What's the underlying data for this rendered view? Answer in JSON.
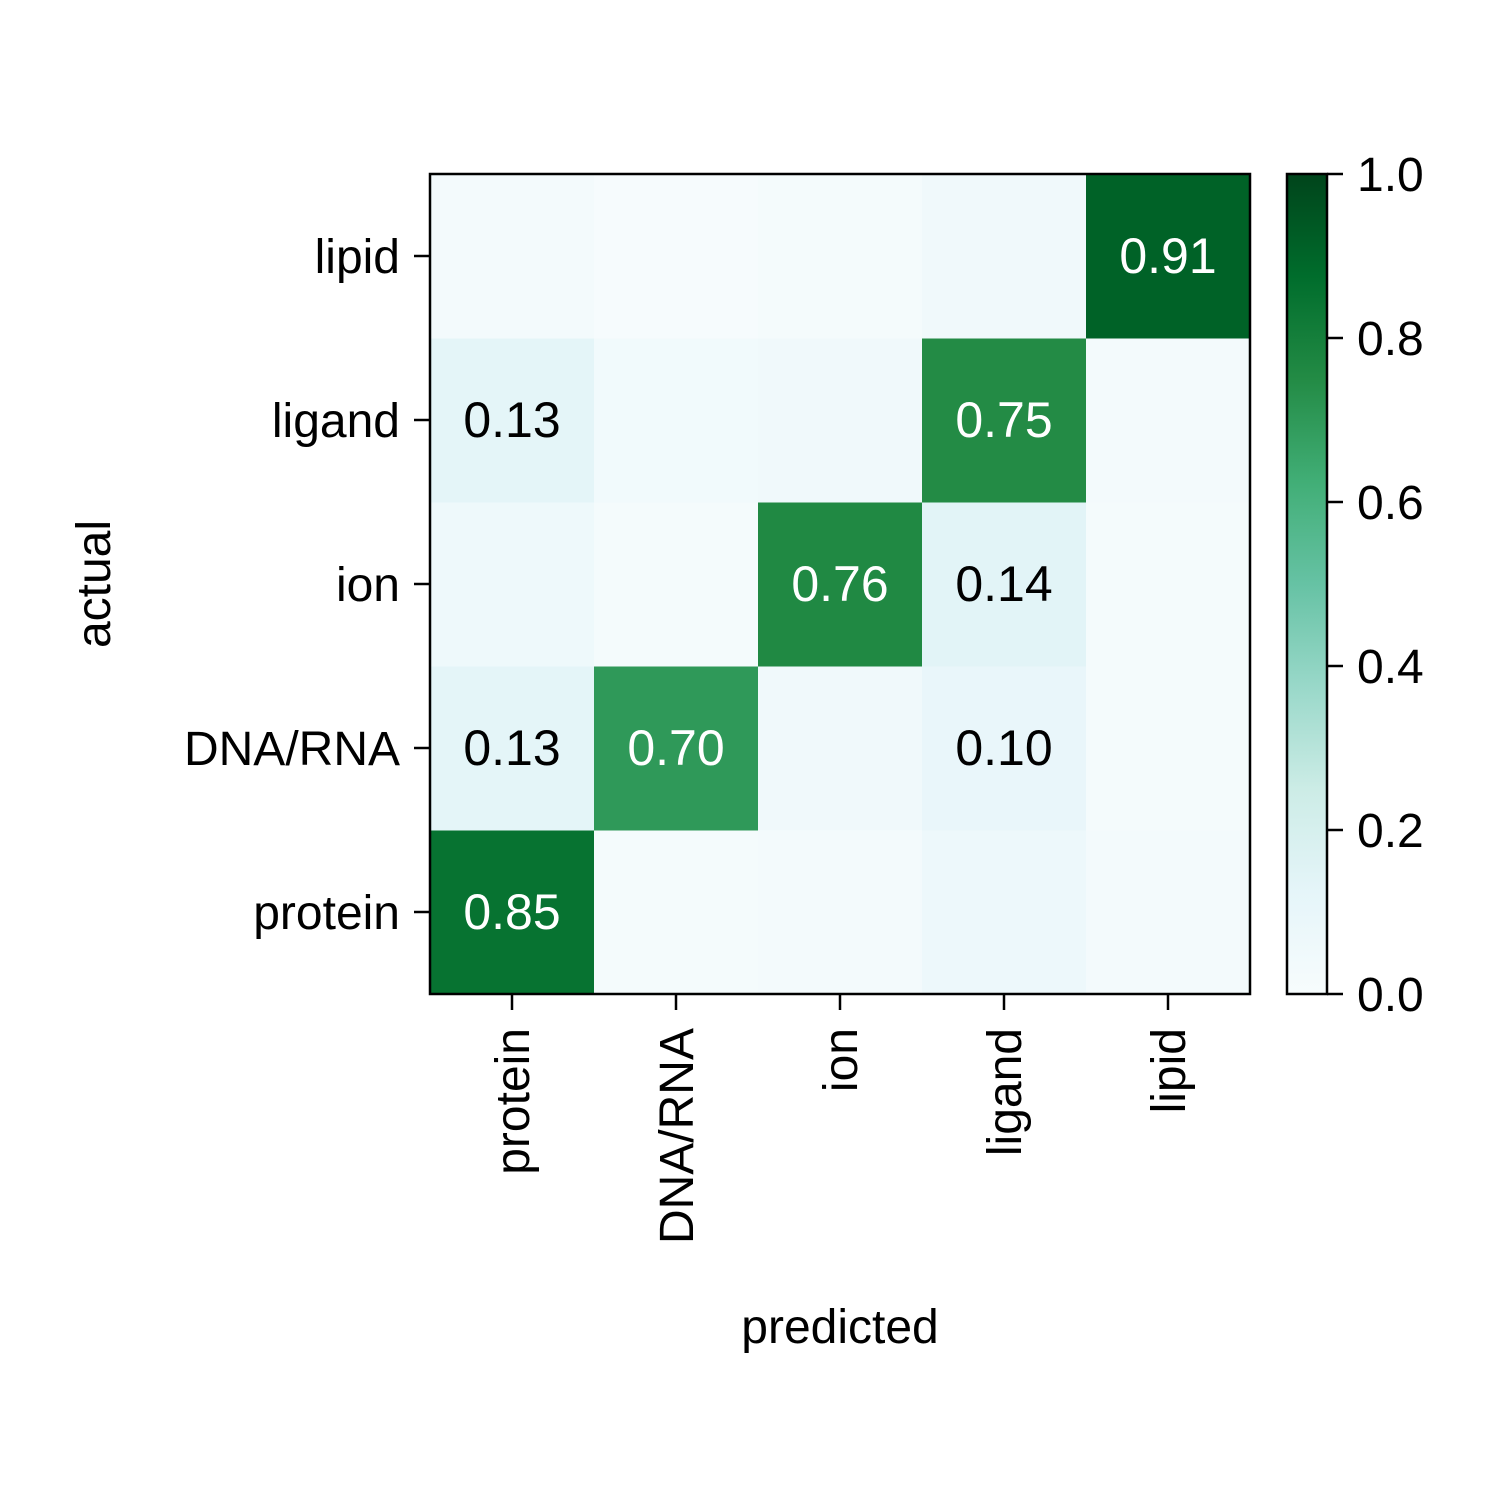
{
  "chart_data": {
    "type": "heatmap",
    "title": "",
    "xlabel": "predicted",
    "ylabel": "actual",
    "x_categories": [
      "protein",
      "DNA/RNA",
      "ion",
      "ligand",
      "lipid"
    ],
    "y_categories": [
      "protein",
      "DNA/RNA",
      "ion",
      "ligand",
      "lipid"
    ],
    "values": [
      [
        0.85,
        0.02,
        0.03,
        0.07,
        0.03
      ],
      [
        0.13,
        0.7,
        0.05,
        0.1,
        0.02
      ],
      [
        0.06,
        0.02,
        0.76,
        0.14,
        0.02
      ],
      [
        0.13,
        0.04,
        0.05,
        0.75,
        0.03
      ],
      [
        0.03,
        0.01,
        0.02,
        0.05,
        0.91
      ]
    ],
    "annotations": [
      {
        "row": 0,
        "col": 0,
        "text": "0.85"
      },
      {
        "row": 1,
        "col": 0,
        "text": "0.13"
      },
      {
        "row": 1,
        "col": 1,
        "text": "0.70"
      },
      {
        "row": 1,
        "col": 3,
        "text": "0.10"
      },
      {
        "row": 2,
        "col": 2,
        "text": "0.76"
      },
      {
        "row": 2,
        "col": 3,
        "text": "0.14"
      },
      {
        "row": 3,
        "col": 0,
        "text": "0.13"
      },
      {
        "row": 3,
        "col": 3,
        "text": "0.75"
      },
      {
        "row": 4,
        "col": 4,
        "text": "0.91"
      }
    ],
    "colorbar": {
      "range": [
        0.0,
        1.0
      ],
      "ticks": [
        "0.0",
        "0.2",
        "0.4",
        "0.6",
        "0.8",
        "1.0"
      ],
      "colormap": [
        "#f7fcfd",
        "#e5f5f9",
        "#ccece6",
        "#99d8c9",
        "#66c2a4",
        "#41ae76",
        "#238b45",
        "#006d2c",
        "#00441b"
      ]
    },
    "annotation_text_colors": {
      "light_cell": "#000000",
      "dark_cell": "#ffffff"
    },
    "grid": false
  }
}
